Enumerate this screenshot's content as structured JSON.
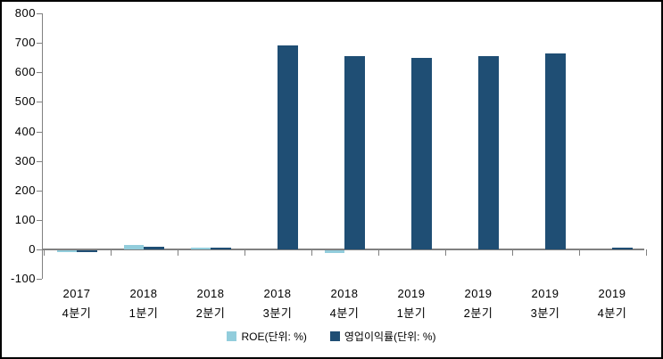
{
  "chart_data": {
    "type": "bar",
    "title": "",
    "xlabel": "",
    "ylabel": "",
    "categories": [
      {
        "year": "2017",
        "quarter": "4분기"
      },
      {
        "year": "2018",
        "quarter": "1분기"
      },
      {
        "year": "2018",
        "quarter": "2분기"
      },
      {
        "year": "2018",
        "quarter": "3분기"
      },
      {
        "year": "2018",
        "quarter": "4분기"
      },
      {
        "year": "2019",
        "quarter": "1분기"
      },
      {
        "year": "2019",
        "quarter": "2분기"
      },
      {
        "year": "2019",
        "quarter": "3분기"
      },
      {
        "year": "2019",
        "quarter": "4분기"
      }
    ],
    "series": [
      {
        "key": "roe",
        "name": "ROE(단위: %)",
        "color": "#92CDDC",
        "values": [
          -5,
          15,
          5,
          0,
          -10,
          0,
          0,
          0,
          0
        ]
      },
      {
        "key": "operating-margin",
        "name": "영업이익률(단위: %)",
        "color": "#1F4E74",
        "values": [
          -5,
          10,
          5,
          690,
          655,
          650,
          655,
          665,
          5
        ]
      }
    ],
    "ylim": [
      -100,
      800
    ],
    "yticks": [
      800,
      700,
      600,
      500,
      400,
      300,
      200,
      100,
      0,
      -100
    ],
    "grid": false,
    "legend_position": "bottom",
    "axis_color": "#808080",
    "text_color": "#000000",
    "background_color": "#FFFFFF",
    "border_color": "#000000"
  }
}
